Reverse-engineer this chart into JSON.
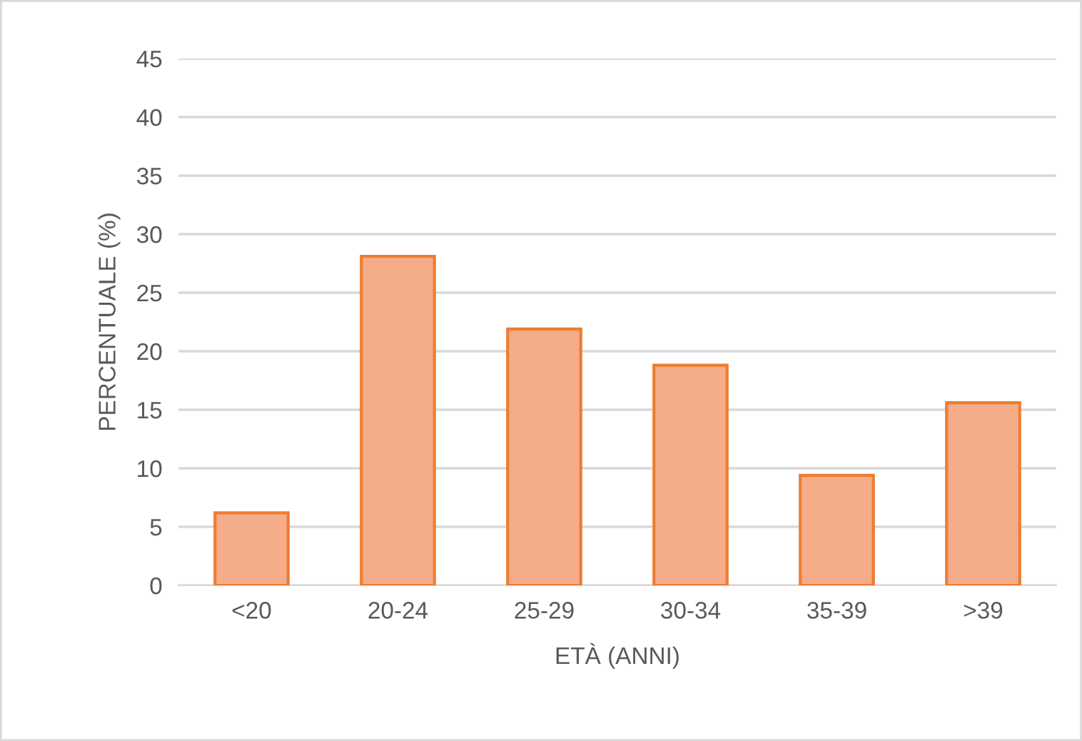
{
  "chart_data": {
    "type": "bar",
    "xlabel": "ETÀ (ANNI)",
    "ylabel": "PERCENTUALE (%)",
    "categories": [
      "<20",
      "20-24",
      "25-29",
      "30-34",
      "35-39",
      ">39"
    ],
    "values": [
      6.2,
      28.1,
      21.9,
      18.8,
      9.4,
      15.6
    ],
    "color": "#f5ac88",
    "ylim": [
      0,
      45
    ],
    "yticks": [
      0,
      5,
      10,
      15,
      20,
      25,
      30,
      35,
      40,
      45
    ],
    "grid": "y"
  }
}
